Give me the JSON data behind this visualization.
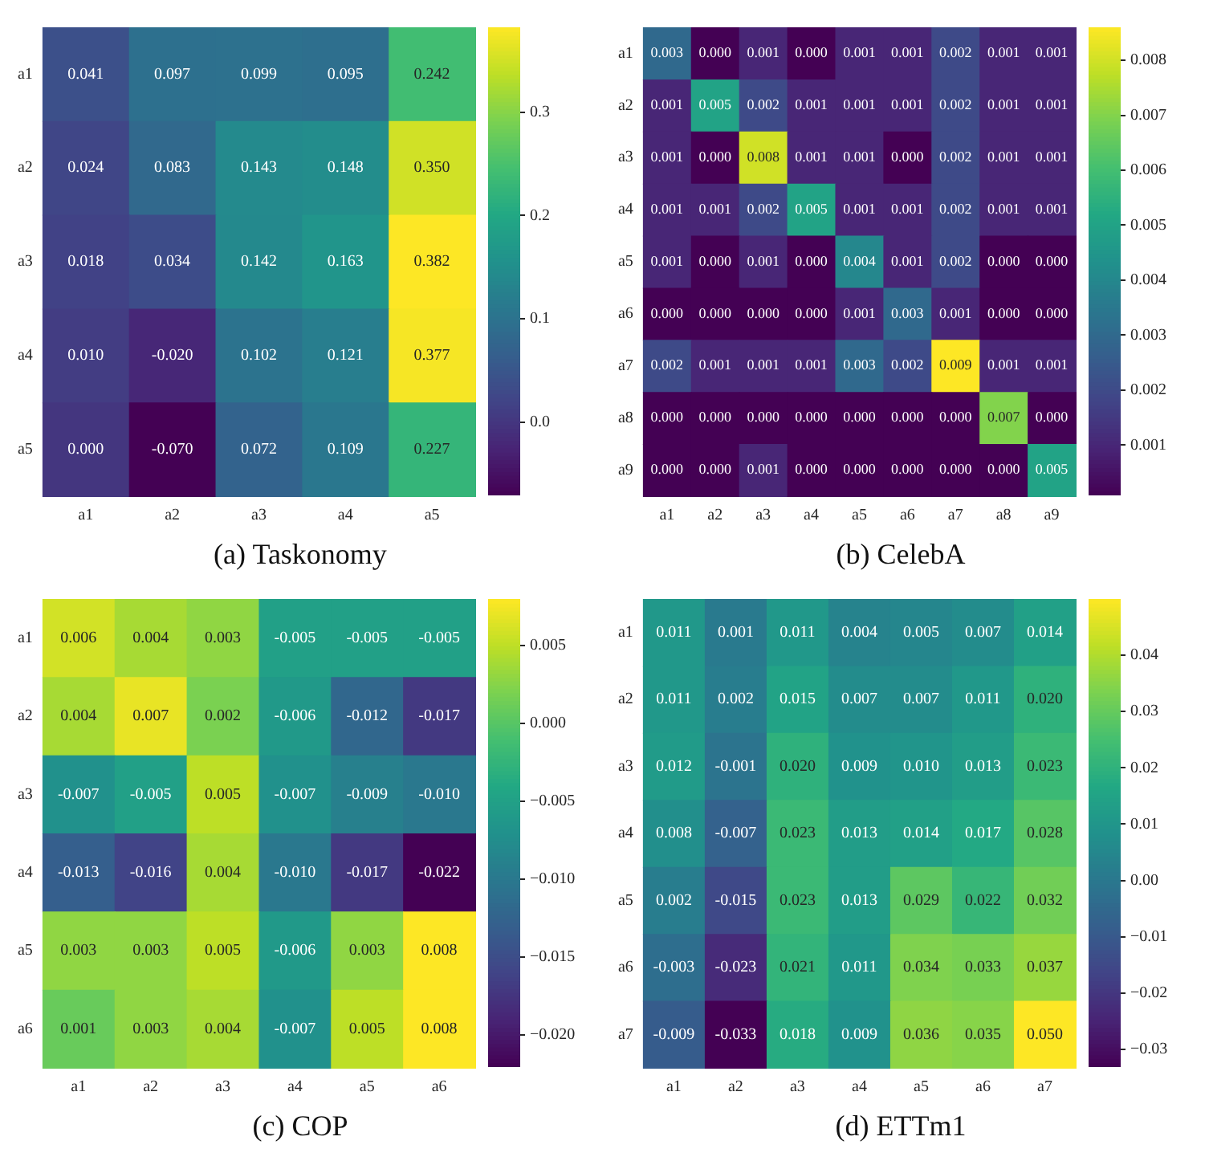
{
  "chart_data": [
    {
      "type": "heatmap",
      "title": "(a) Taskonomy",
      "categories": [
        "a1",
        "a2",
        "a3",
        "a4",
        "a5"
      ],
      "y_categories": [
        "a1",
        "a2",
        "a3",
        "a4",
        "a5"
      ],
      "cells": [
        [
          0.041,
          0.097,
          0.099,
          0.095,
          0.242
        ],
        [
          0.024,
          0.083,
          0.143,
          0.148,
          0.35
        ],
        [
          0.018,
          0.034,
          0.142,
          0.163,
          0.382
        ],
        [
          0.01,
          -0.02,
          0.102,
          0.121,
          0.377
        ],
        [
          0.0,
          -0.07,
          0.072,
          0.109,
          0.227
        ]
      ],
      "cell_labels": [
        [
          "0.041",
          "0.097",
          "0.099",
          "0.095",
          "0.242"
        ],
        [
          "0.024",
          "0.083",
          "0.143",
          "0.148",
          "0.350"
        ],
        [
          "0.018",
          "0.034",
          "0.142",
          "0.163",
          "0.382"
        ],
        [
          "0.010",
          "-0.020",
          "0.102",
          "0.121",
          "0.377"
        ],
        [
          "0.000",
          "-0.070",
          "0.072",
          "0.109",
          "0.227"
        ]
      ],
      "clim": [
        -0.07,
        0.382
      ],
      "cticks": [
        {
          "value": 0,
          "label": "0.0"
        },
        {
          "value": 0.1,
          "label": "0.1"
        },
        {
          "value": 0.2,
          "label": "0.2"
        },
        {
          "value": 0.3,
          "label": "0.3"
        }
      ],
      "data_labels": true
    },
    {
      "type": "heatmap",
      "title": "(b) CelebA",
      "categories": [
        "a1",
        "a2",
        "a3",
        "a4",
        "a5",
        "a6",
        "a7",
        "a8",
        "a9"
      ],
      "y_categories": [
        "a1",
        "a2",
        "a3",
        "a4",
        "a5",
        "a6",
        "a7",
        "a8",
        "a9"
      ],
      "cells": [
        [
          0.003,
          0.0,
          0.001,
          0.0,
          0.001,
          0.001,
          0.002,
          0.001,
          0.001
        ],
        [
          0.001,
          0.005,
          0.002,
          0.001,
          0.001,
          0.001,
          0.002,
          0.001,
          0.001
        ],
        [
          0.001,
          0.0,
          0.008,
          0.001,
          0.001,
          0.0,
          0.002,
          0.001,
          0.001
        ],
        [
          0.001,
          0.001,
          0.002,
          0.005,
          0.001,
          0.001,
          0.002,
          0.001,
          0.001
        ],
        [
          0.001,
          0.0,
          0.001,
          0.0,
          0.004,
          0.001,
          0.002,
          0.0,
          0.0
        ],
        [
          0.0,
          0.0,
          0.0,
          0.0,
          0.001,
          0.003,
          0.001,
          0.0,
          0.0
        ],
        [
          0.002,
          0.001,
          0.001,
          0.001,
          0.003,
          0.002,
          0.009,
          0.001,
          0.001
        ],
        [
          0.0,
          0.0,
          0.0,
          0.0,
          0.0,
          0.0,
          0.0,
          0.007,
          0.0
        ],
        [
          0.0,
          0.0,
          0.001,
          0.0,
          0.0,
          0.0,
          0.0,
          0.0,
          0.005
        ]
      ],
      "cell_labels": [
        [
          "0.003",
          "0.000",
          "0.001",
          "0.000",
          "0.001",
          "0.001",
          "0.002",
          "0.001",
          "0.001"
        ],
        [
          "0.001",
          "0.005",
          "0.002",
          "0.001",
          "0.001",
          "0.001",
          "0.002",
          "0.001",
          "0.001"
        ],
        [
          "0.001",
          "0.000",
          "0.008",
          "0.001",
          "0.001",
          "0.000",
          "0.002",
          "0.001",
          "0.001"
        ],
        [
          "0.001",
          "0.001",
          "0.002",
          "0.005",
          "0.001",
          "0.001",
          "0.002",
          "0.001",
          "0.001"
        ],
        [
          "0.001",
          "0.000",
          "0.001",
          "0.000",
          "0.004",
          "0.001",
          "0.002",
          "0.000",
          "0.000"
        ],
        [
          "0.000",
          "0.000",
          "0.000",
          "0.000",
          "0.001",
          "0.003",
          "0.001",
          "0.000",
          "0.000"
        ],
        [
          "0.002",
          "0.001",
          "0.001",
          "0.001",
          "0.003",
          "0.002",
          "0.009",
          "0.001",
          "0.001"
        ],
        [
          "0.000",
          "0.000",
          "0.000",
          "0.000",
          "0.000",
          "0.000",
          "0.000",
          "0.007",
          "0.000"
        ],
        [
          "0.000",
          "0.000",
          "0.001",
          "0.000",
          "0.000",
          "0.000",
          "0.000",
          "0.000",
          "0.005"
        ]
      ],
      "clim": [
        0.0001,
        0.0086
      ],
      "cticks": [
        0.001,
        0.002,
        0.003,
        0.004,
        0.005,
        0.006,
        0.007,
        0.008
      ],
      "data_labels": true
    },
    {
      "type": "heatmap",
      "title": "(c) COP",
      "categories": [
        "a1",
        "a2",
        "a3",
        "a4",
        "a5",
        "a6"
      ],
      "y_categories": [
        "a1",
        "a2",
        "a3",
        "a4",
        "a5",
        "a6"
      ],
      "cells": [
        [
          0.006,
          0.004,
          0.003,
          -0.005,
          -0.005,
          -0.005
        ],
        [
          0.004,
          0.007,
          0.002,
          -0.006,
          -0.012,
          -0.017
        ],
        [
          -0.007,
          -0.005,
          0.005,
          -0.007,
          -0.009,
          -0.01
        ],
        [
          -0.013,
          -0.016,
          0.004,
          -0.01,
          -0.017,
          -0.022
        ],
        [
          0.003,
          0.003,
          0.005,
          -0.006,
          0.003,
          0.008
        ],
        [
          0.001,
          0.003,
          0.004,
          -0.007,
          0.005,
          0.008
        ]
      ],
      "cell_labels": [
        [
          "0.006",
          "0.004",
          "0.003",
          "-0.005",
          "-0.005",
          "-0.005"
        ],
        [
          "0.004",
          "0.007",
          "0.002",
          "-0.006",
          "-0.012",
          "-0.017"
        ],
        [
          "-0.007",
          "-0.005",
          "0.005",
          "-0.007",
          "-0.009",
          "-0.010"
        ],
        [
          "-0.013",
          "-0.016",
          "0.004",
          "-0.010",
          "-0.017",
          "-0.022"
        ],
        [
          "0.003",
          "0.003",
          "0.005",
          "-0.006",
          "0.003",
          "0.008"
        ],
        [
          "0.001",
          "0.003",
          "0.004",
          "-0.007",
          "0.005",
          "0.008"
        ]
      ],
      "clim": [
        -0.022,
        0.008
      ],
      "cticks": [
        {
          "value": -0.02,
          "label": "−0.020"
        },
        {
          "value": -0.015,
          "label": "−0.015"
        },
        {
          "value": -0.01,
          "label": "−0.010"
        },
        {
          "value": -0.005,
          "label": "−0.005"
        },
        {
          "value": 0,
          "label": "0.000"
        },
        {
          "value": 0.005,
          "label": "0.005"
        }
      ],
      "data_labels": true
    },
    {
      "type": "heatmap",
      "title": "(d) ETTm1",
      "categories": [
        "a1",
        "a2",
        "a3",
        "a4",
        "a5",
        "a6",
        "a7"
      ],
      "y_categories": [
        "a1",
        "a2",
        "a3",
        "a4",
        "a5",
        "a6",
        "a7"
      ],
      "cells": [
        [
          0.011,
          0.001,
          0.011,
          0.004,
          0.005,
          0.007,
          0.014
        ],
        [
          0.011,
          0.002,
          0.015,
          0.007,
          0.007,
          0.011,
          0.02
        ],
        [
          0.012,
          -0.001,
          0.02,
          0.009,
          0.01,
          0.013,
          0.023
        ],
        [
          0.008,
          -0.007,
          0.023,
          0.013,
          0.014,
          0.017,
          0.028
        ],
        [
          0.002,
          -0.015,
          0.023,
          0.013,
          0.029,
          0.022,
          0.032
        ],
        [
          -0.003,
          -0.023,
          0.021,
          0.011,
          0.034,
          0.033,
          0.037
        ],
        [
          -0.009,
          -0.033,
          0.018,
          0.009,
          0.036,
          0.035,
          0.05
        ]
      ],
      "cell_labels": [
        [
          "0.011",
          "0.001",
          "0.011",
          "0.004",
          "0.005",
          "0.007",
          "0.014"
        ],
        [
          "0.011",
          "0.002",
          "0.015",
          "0.007",
          "0.007",
          "0.011",
          "0.020"
        ],
        [
          "0.012",
          "-0.001",
          "0.020",
          "0.009",
          "0.010",
          "0.013",
          "0.023"
        ],
        [
          "0.008",
          "-0.007",
          "0.023",
          "0.013",
          "0.014",
          "0.017",
          "0.028"
        ],
        [
          "0.002",
          "-0.015",
          "0.023",
          "0.013",
          "0.029",
          "0.022",
          "0.032"
        ],
        [
          "-0.003",
          "-0.023",
          "0.021",
          "0.011",
          "0.034",
          "0.033",
          "0.037"
        ],
        [
          "-0.009",
          "-0.033",
          "0.018",
          "0.009",
          "0.036",
          "0.035",
          "0.050"
        ]
      ],
      "clim": [
        -0.033,
        0.05
      ],
      "cticks": [
        {
          "value": -0.03,
          "label": "−0.03"
        },
        {
          "value": -0.02,
          "label": "−0.02"
        },
        {
          "value": -0.01,
          "label": "−0.01"
        },
        {
          "value": 0,
          "label": "0.00"
        },
        {
          "value": 0.01,
          "label": "0.01"
        },
        {
          "value": 0.02,
          "label": "0.02"
        },
        {
          "value": 0.03,
          "label": "0.03"
        },
        {
          "value": 0.04,
          "label": "0.04"
        }
      ],
      "data_labels": true
    }
  ]
}
